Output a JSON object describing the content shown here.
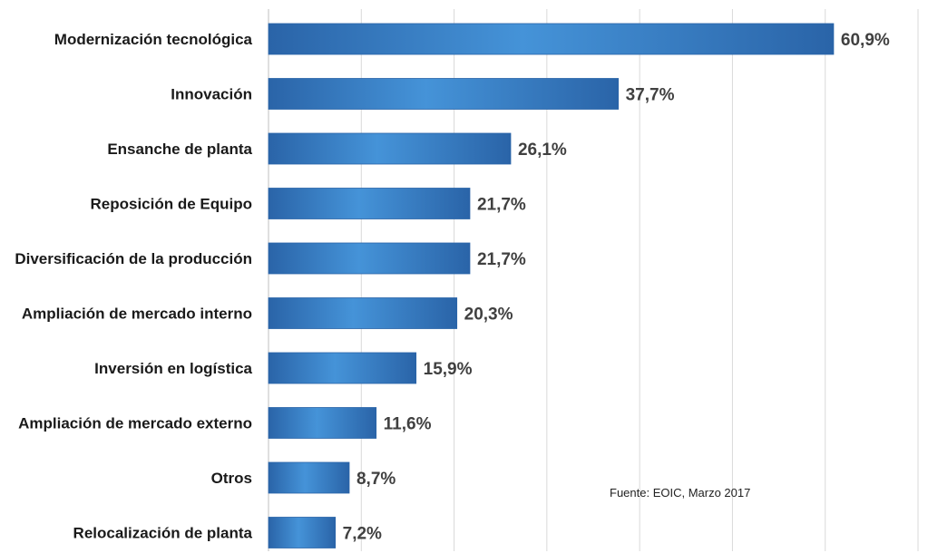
{
  "chart_data": {
    "type": "bar",
    "orientation": "horizontal",
    "title": "",
    "xlabel": "",
    "ylabel": "",
    "categories": [
      "Modernización tecnológica",
      "Innovación",
      "Ensanche de planta",
      "Reposición de Equipo",
      "Diversificación de la producción",
      "Ampliación de mercado interno",
      "Inversión en logística",
      "Ampliación de mercado externo",
      "Otros",
      "Relocalización de planta"
    ],
    "values": [
      60.9,
      37.7,
      26.1,
      21.7,
      21.7,
      20.3,
      15.9,
      11.6,
      8.7,
      7.2
    ],
    "value_labels": [
      "60,9%",
      "37,7%",
      "26,1%",
      "21,7%",
      "21,7%",
      "20,3%",
      "15,9%",
      "11,6%",
      "8,7%",
      "7,2%"
    ],
    "xlim": [
      0,
      70
    ],
    "grid": true,
    "legend": "none",
    "bar_color": "#3a84cc",
    "bar_edge_color": "#2a64a8"
  },
  "source_note": "Fuente: EOIC, Marzo 2017"
}
